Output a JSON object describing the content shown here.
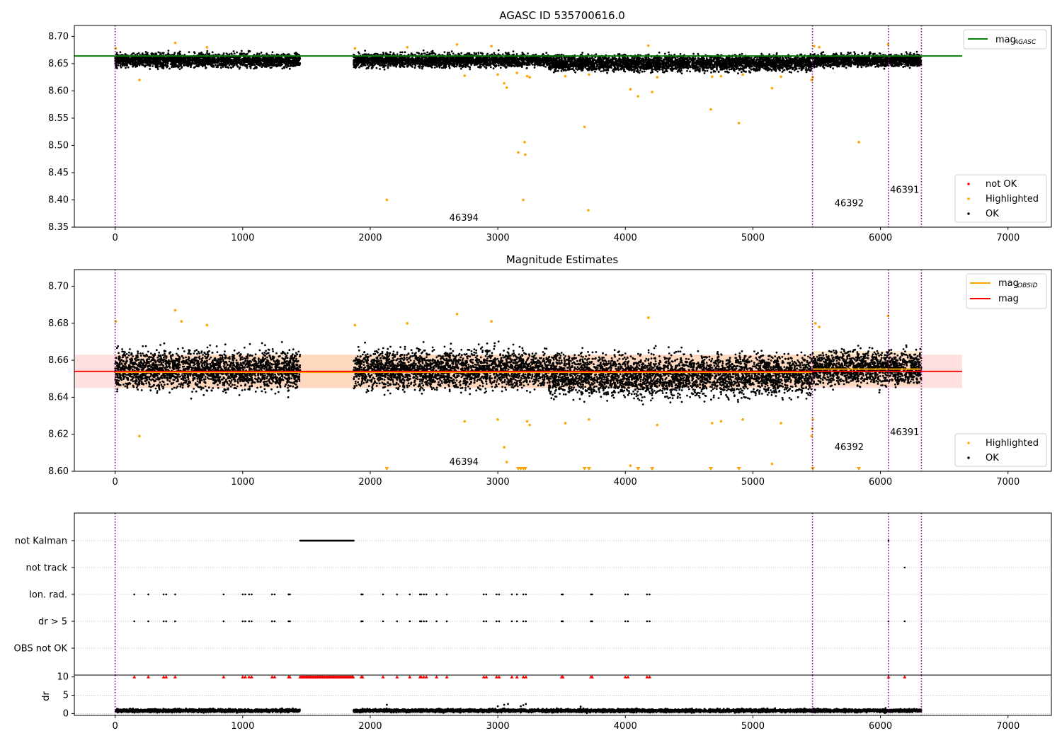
{
  "chart_data": [
    {
      "type": "scatter",
      "title": "AGASC ID 535700616.0",
      "xlim": [
        -320,
        7340
      ],
      "ylim": [
        8.35,
        8.72
      ],
      "xticks": [
        0,
        1000,
        2000,
        3000,
        4000,
        5000,
        6000,
        7000
      ],
      "yticks": [
        8.35,
        8.4,
        8.45,
        8.5,
        8.55,
        8.6,
        8.65,
        8.7
      ],
      "ytick_labels": [
        "8.35",
        "8.40",
        "8.45",
        "8.50",
        "8.55",
        "8.60",
        "8.65",
        "8.70"
      ],
      "ok_segments": [
        {
          "x0": 0,
          "x1": 1450,
          "center": 8.656,
          "spread": 0.011
        },
        {
          "x0": 1870,
          "x1": 3400,
          "center": 8.656,
          "spread": 0.011
        },
        {
          "x0": 3400,
          "x1": 5470,
          "center": 8.651,
          "spread": 0.013
        },
        {
          "x0": 5470,
          "x1": 6320,
          "center": 8.656,
          "spread": 0.01
        }
      ],
      "highlighted": [
        [
          5,
          8.678
        ],
        [
          190,
          8.62
        ],
        [
          470,
          8.688
        ],
        [
          720,
          8.68
        ],
        [
          1880,
          8.678
        ],
        [
          2130,
          8.4
        ],
        [
          2290,
          8.68
        ],
        [
          2680,
          8.685
        ],
        [
          2740,
          8.628
        ],
        [
          2950,
          8.682
        ],
        [
          3000,
          8.63
        ],
        [
          3050,
          8.614
        ],
        [
          3070,
          8.606
        ],
        [
          3150,
          8.633
        ],
        [
          3160,
          8.487
        ],
        [
          3200,
          8.4
        ],
        [
          3210,
          8.506
        ],
        [
          3215,
          8.483
        ],
        [
          3230,
          8.627
        ],
        [
          3250,
          8.625
        ],
        [
          3530,
          8.627
        ],
        [
          3680,
          8.534
        ],
        [
          3710,
          8.381
        ],
        [
          3715,
          8.63
        ],
        [
          4040,
          8.603
        ],
        [
          4100,
          8.59
        ],
        [
          4180,
          8.683
        ],
        [
          4210,
          8.598
        ],
        [
          4250,
          8.625
        ],
        [
          4670,
          8.566
        ],
        [
          4680,
          8.626
        ],
        [
          4750,
          8.627
        ],
        [
          4890,
          8.541
        ],
        [
          4920,
          8.63
        ],
        [
          5150,
          8.605
        ],
        [
          5220,
          8.626
        ],
        [
          5460,
          8.62
        ],
        [
          5470,
          8.625
        ],
        [
          5480,
          8.682
        ],
        [
          5520,
          8.68
        ],
        [
          5830,
          8.506
        ],
        [
          6060,
          8.685
        ]
      ],
      "not_ok": [],
      "lines": [
        {
          "name": "mag_AGASC",
          "y": 8.664,
          "x0": -320,
          "x1": 6640,
          "color": "#008000"
        }
      ],
      "vlines": [
        0,
        5467,
        6063,
        6321
      ],
      "annotations": [
        {
          "text": "46394",
          "x": 2620,
          "y": 8.362
        },
        {
          "text": "46392",
          "x": 5640,
          "y": 8.388
        },
        {
          "text": "46391",
          "x": 6075,
          "y": 8.413
        }
      ],
      "legend_top": {
        "position": "upper right",
        "entries": [
          {
            "label": "mag",
            "sub": "AGASC",
            "color": "#008000"
          }
        ]
      },
      "legend_bottom": {
        "position": "lower right",
        "entries": [
          {
            "label": "not OK",
            "color": "#ff0000"
          },
          {
            "label": "Highlighted",
            "color": "#ffa500"
          },
          {
            "label": "OK",
            "color": "#000000"
          }
        ]
      }
    },
    {
      "type": "scatter",
      "title": "Magnitude Estimates",
      "xlim": [
        -320,
        7340
      ],
      "ylim": [
        8.6,
        8.709
      ],
      "xticks": [
        0,
        1000,
        2000,
        3000,
        4000,
        5000,
        6000,
        7000
      ],
      "yticks": [
        8.6,
        8.62,
        8.64,
        8.66,
        8.68,
        8.7
      ],
      "ytick_labels": [
        "8.60",
        "8.62",
        "8.64",
        "8.66",
        "8.68",
        "8.70"
      ],
      "ok_segments": [
        {
          "x0": 0,
          "x1": 1450,
          "center": 8.655,
          "spread": 0.009
        },
        {
          "x0": 1870,
          "x1": 3400,
          "center": 8.655,
          "spread": 0.009
        },
        {
          "x0": 3400,
          "x1": 5470,
          "center": 8.652,
          "spread": 0.01
        },
        {
          "x0": 5470,
          "x1": 6320,
          "center": 8.656,
          "spread": 0.008
        }
      ],
      "highlighted": [
        [
          5,
          8.681
        ],
        [
          190,
          8.619
        ],
        [
          470,
          8.687
        ],
        [
          520,
          8.681
        ],
        [
          720,
          8.679
        ],
        [
          1880,
          8.679
        ],
        [
          2290,
          8.68
        ],
        [
          2680,
          8.685
        ],
        [
          2740,
          8.627
        ],
        [
          2950,
          8.681
        ],
        [
          3000,
          8.628
        ],
        [
          3050,
          8.613
        ],
        [
          3070,
          8.605
        ],
        [
          3230,
          8.627
        ],
        [
          3250,
          8.625
        ],
        [
          3530,
          8.626
        ],
        [
          3715,
          8.628
        ],
        [
          4040,
          8.603
        ],
        [
          4180,
          8.683
        ],
        [
          4250,
          8.625
        ],
        [
          4680,
          8.626
        ],
        [
          4750,
          8.627
        ],
        [
          4920,
          8.628
        ],
        [
          5150,
          8.604
        ],
        [
          5220,
          8.626
        ],
        [
          5460,
          8.619
        ],
        [
          5465,
          8.623
        ],
        [
          5470,
          8.628
        ],
        [
          5490,
          8.68
        ],
        [
          5520,
          8.678
        ],
        [
          6060,
          8.684
        ]
      ],
      "off_scale_markers": [
        2130,
        3160,
        3180,
        3200,
        3215,
        3680,
        3715,
        4100,
        4210,
        4670,
        4890,
        5470,
        5830
      ],
      "band_total": {
        "y0": 8.645,
        "y1": 8.663,
        "x0": -320,
        "x1": 6640,
        "color": "#ff9999"
      },
      "band_obsid": [
        {
          "x0": 0,
          "x1": 5467,
          "y0": 8.645,
          "y1": 8.663
        },
        {
          "x0": 5467,
          "x1": 6321,
          "y0": 8.646,
          "y1": 8.665
        }
      ],
      "lines": [
        {
          "name": "mag_OBSID",
          "color": "#ffa500",
          "segments": [
            [
              0,
              5467,
              8.6535
            ],
            [
              5467,
              6321,
              8.6552
            ]
          ]
        },
        {
          "name": "mag",
          "color": "#ff0000",
          "y": 8.654,
          "x0": -320,
          "x1": 6640
        }
      ],
      "vlines": [
        0,
        5467,
        6063,
        6321
      ],
      "annotations": [
        {
          "text": "46394",
          "x": 2620,
          "y": 8.6035
        },
        {
          "text": "46392",
          "x": 5640,
          "y": 8.6115
        },
        {
          "text": "46391",
          "x": 6075,
          "y": 8.6195
        }
      ],
      "legend_top": {
        "position": "upper right",
        "entries": [
          {
            "label": "mag",
            "sub": "OBSID",
            "color": "#ffa500"
          },
          {
            "label": "mag",
            "sub": "",
            "color": "#ff0000"
          }
        ]
      },
      "legend_bottom": {
        "position": "lower right",
        "entries": [
          {
            "label": "Highlighted",
            "color": "#ffa500"
          },
          {
            "label": "OK",
            "color": "#000000"
          }
        ]
      }
    },
    {
      "type": "scatter",
      "title": "",
      "xlim": [
        -320,
        7340
      ],
      "categories": [
        "not Kalman",
        "not track",
        "Ion. rad.",
        "dr > 5",
        "OBS not OK"
      ],
      "flags": {
        "not Kalman": {
          "ranges": [
            [
              1450,
              1870
            ]
          ],
          "points": [
            6063
          ]
        },
        "not track": {
          "ranges": [],
          "points": [
            6190
          ]
        },
        "Ion. rad.": {
          "ranges": [],
          "points": [
            150,
            260,
            380,
            400,
            470,
            850,
            1000,
            1020,
            1050,
            1070,
            1230,
            1250,
            1360,
            1370,
            1930,
            1940,
            2100,
            2210,
            2310,
            2390,
            2400,
            2420,
            2440,
            2520,
            2600,
            2890,
            2910,
            2990,
            3010,
            3110,
            3150,
            3200,
            3220,
            3500,
            3510,
            3730,
            3740,
            4000,
            4020,
            4170,
            4190
          ]
        },
        "dr > 5": {
          "ranges": [],
          "points": [
            150,
            260,
            380,
            400,
            470,
            850,
            1000,
            1020,
            1050,
            1070,
            1230,
            1250,
            1360,
            1370,
            1930,
            1940,
            2100,
            2210,
            2310,
            2390,
            2400,
            2420,
            2440,
            2520,
            2600,
            2890,
            2910,
            2990,
            3010,
            3110,
            3150,
            3200,
            3220,
            3500,
            3510,
            3730,
            3740,
            4000,
            4020,
            4170,
            4190,
            6063,
            6190
          ]
        },
        "OBS not OK": {
          "ranges": [],
          "points": []
        }
      },
      "vlines": [
        0,
        5467,
        6063,
        6321
      ]
    },
    {
      "type": "scatter",
      "title": "",
      "ylabel": "dr",
      "xlim": [
        -320,
        7340
      ],
      "ylim": [
        -0.5,
        10.5
      ],
      "xticks": [
        0,
        1000,
        2000,
        3000,
        4000,
        5000,
        6000,
        7000
      ],
      "yticks": [
        0,
        5,
        10
      ],
      "dr_segments": [
        {
          "x0": 0,
          "x1": 1450,
          "center": 0.8,
          "spread": 0.35
        },
        {
          "x0": 1870,
          "x1": 6320,
          "center": 0.8,
          "spread": 0.35
        }
      ],
      "dr_outliers": [
        [
          2130,
          2.4
        ],
        [
          3000,
          2.0
        ],
        [
          3050,
          2.4
        ],
        [
          3080,
          2.6
        ],
        [
          3180,
          2.0
        ],
        [
          3200,
          2.3
        ],
        [
          3220,
          2.6
        ],
        [
          3650,
          1.9
        ],
        [
          6040,
          1.5
        ]
      ],
      "clipped_markers": {
        "y": 10,
        "x_ranges": [
          [
            1450,
            1870
          ]
        ],
        "x_points": [
          150,
          260,
          380,
          400,
          470,
          850,
          1000,
          1020,
          1050,
          1070,
          1230,
          1250,
          1360,
          1370,
          1930,
          1940,
          2100,
          2210,
          2310,
          2390,
          2400,
          2420,
          2440,
          2520,
          2600,
          2890,
          2910,
          2990,
          3010,
          3110,
          3150,
          3200,
          3220,
          3500,
          3510,
          3730,
          3740,
          4000,
          4020,
          4170,
          4190,
          6063,
          6190
        ]
      },
      "vlines": [
        0,
        5467,
        6063,
        6321
      ]
    }
  ]
}
